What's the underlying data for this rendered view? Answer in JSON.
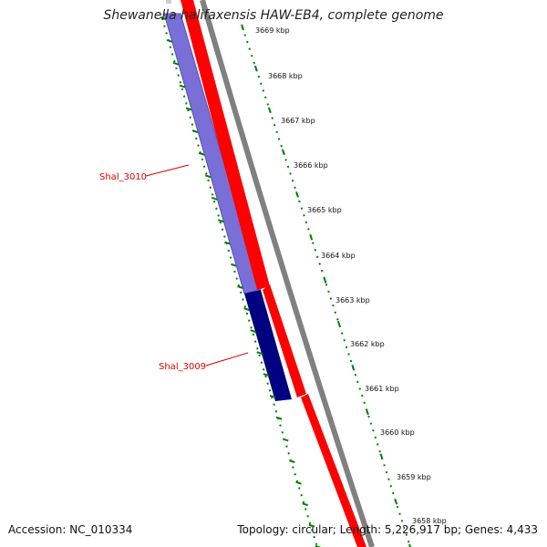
{
  "title": "Shewanella halifaxensis HAW-EB4, complete genome",
  "footer": {
    "accession": "Accession: NC_010334",
    "summary": "Topology: circular; Length: 5,226,917 bp; Genes: 4,433"
  },
  "genes": [
    {
      "name": "Shal_3010",
      "color": "#7a6fd6"
    },
    {
      "name": "Shal_3009",
      "color": "#000080"
    }
  ],
  "ruler": {
    "unit": "kbp",
    "ticks": [
      "3669 kbp",
      "3668 kbp",
      "3667 kbp",
      "3666 kbp",
      "3665 kbp",
      "3664 kbp",
      "3663 kbp",
      "3662 kbp",
      "3661 kbp",
      "3660 kbp",
      "3659 kbp",
      "3658 kbp"
    ]
  },
  "colors": {
    "forward_strand": "#ff0000",
    "reverse_strand": "#6a5acd",
    "highlight_gene": "#000080",
    "backbone": "#808080",
    "ruler": "#008000",
    "label": "#e00000"
  }
}
